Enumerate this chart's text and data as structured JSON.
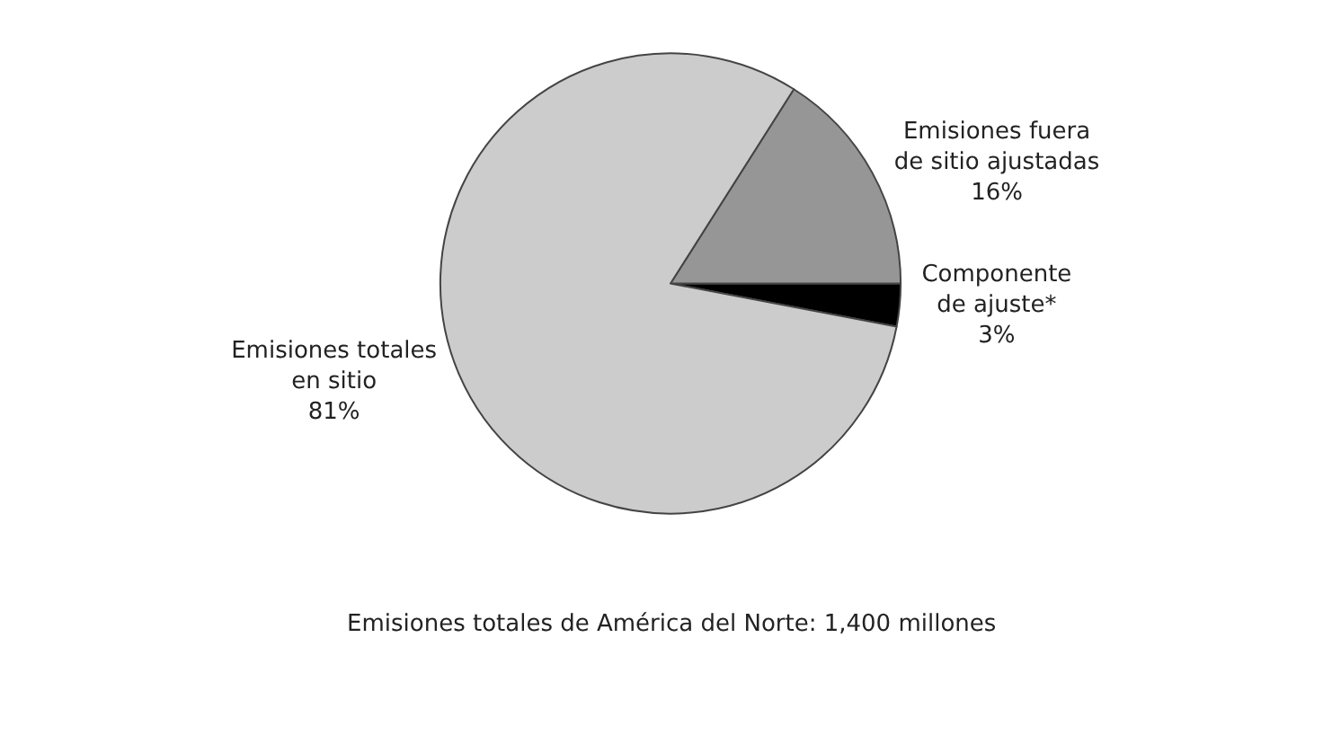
{
  "chart_data": {
    "type": "pie",
    "categories": [
      "Componente\nde ajuste*",
      "Emisiones fuera\nde sitio ajustadas",
      "Emisiones totales\nen sitio"
    ],
    "values": [
      3,
      16,
      81
    ],
    "value_labels": [
      "3%",
      "16%",
      "81%"
    ],
    "colors": [
      "#000000",
      "#969696",
      "#cccccc"
    ],
    "annotations": [
      "Emisiones totales de América del Norte: 1,400 millones"
    ],
    "legend": false
  }
}
